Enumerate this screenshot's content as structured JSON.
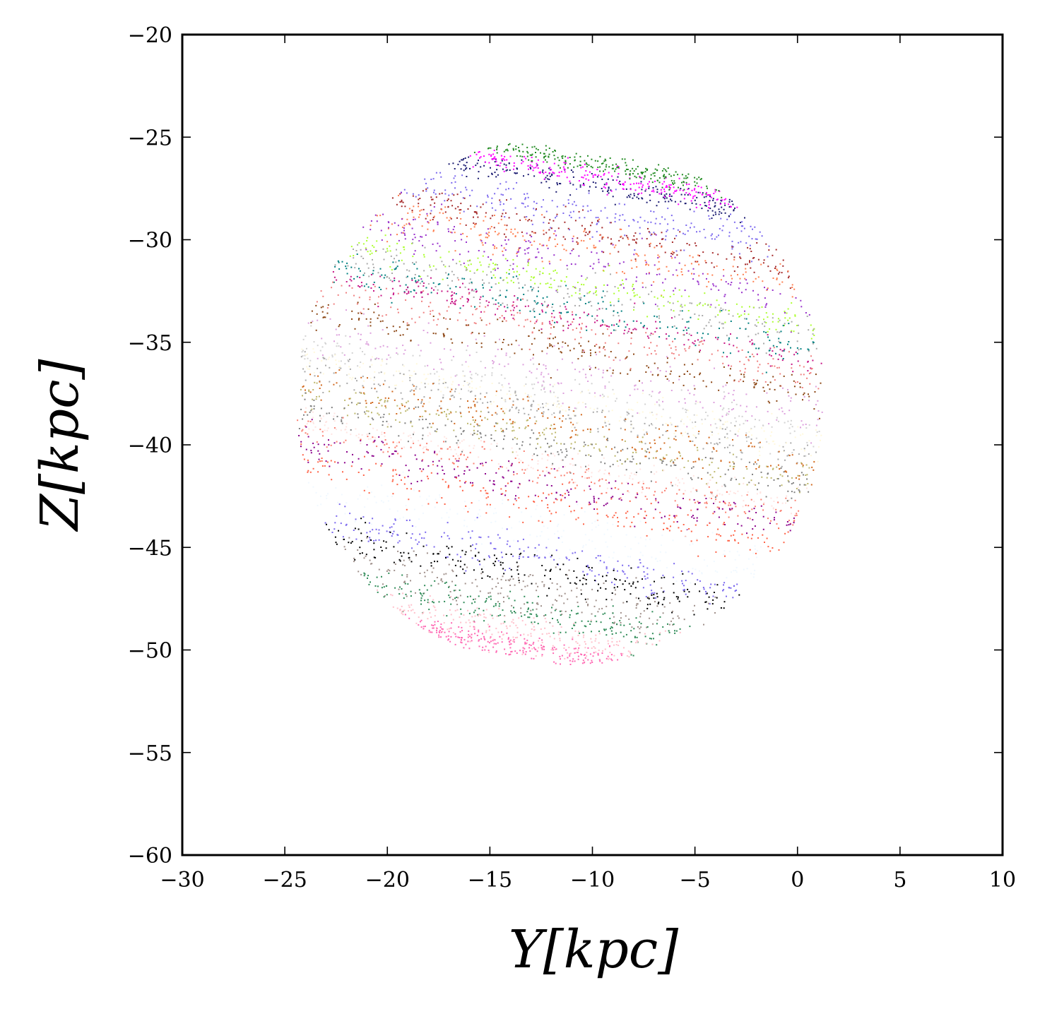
{
  "chart_data": {
    "type": "scatter",
    "title": "",
    "xlabel": "Y[kpc]",
    "ylabel": "Z[kpc]",
    "xlim": [
      -30,
      10
    ],
    "ylim": [
      -60,
      -20
    ],
    "xticks": [
      -30,
      -25,
      -20,
      -15,
      -10,
      -5,
      0,
      5,
      10
    ],
    "yticks": [
      -20,
      -25,
      -30,
      -35,
      -40,
      -45,
      -50,
      -55,
      -60
    ],
    "xtick_labels": [
      "−30",
      "−25",
      "−20",
      "−15",
      "−10",
      "−5",
      "0",
      "5",
      "10"
    ],
    "ytick_labels": [
      "−20",
      "−25",
      "−30",
      "−35",
      "−40",
      "−45",
      "−50",
      "−55",
      "−60"
    ],
    "grid": false,
    "legend": "none",
    "cloud": {
      "center": [
        -11.6,
        -37.9
      ],
      "radius": 12.9
    },
    "band_tilt": -0.17,
    "series": [
      {
        "color": "#191970",
        "z_center": -27.0,
        "width": 0.5
      },
      {
        "color": "#ff00ff",
        "z_center": -26.6,
        "width": 0.5
      },
      {
        "color": "#228b22",
        "z_center": -26.0,
        "width": 0.4
      },
      {
        "color": "#7b68ee",
        "z_center": -28.4,
        "width": 0.9
      },
      {
        "color": "#a52a2a",
        "z_center": -29.4,
        "width": 0.8
      },
      {
        "color": "#ff7f50",
        "z_center": -30.2,
        "width": 0.9
      },
      {
        "color": "#9932cc",
        "z_center": -30.8,
        "width": 1.2
      },
      {
        "color": "#adff2f",
        "z_center": -32.0,
        "width": 0.6
      },
      {
        "color": "#a9a9a9",
        "z_center": -32.6,
        "width": 1.0
      },
      {
        "color": "#008080",
        "z_center": -33.2,
        "width": 0.9
      },
      {
        "color": "#c71585",
        "z_center": -33.7,
        "width": 0.6
      },
      {
        "color": "#f08080",
        "z_center": -34.4,
        "width": 0.9
      },
      {
        "color": "#8b4513",
        "z_center": -35.4,
        "width": 0.9
      },
      {
        "color": "#dda0dd",
        "z_center": -36.5,
        "width": 1.2
      },
      {
        "color": "#d3d3d3",
        "z_center": -37.4,
        "width": 0.9
      },
      {
        "color": "#fff8dc",
        "z_center": -37.9,
        "width": 0.8
      },
      {
        "color": "#a9a9a9",
        "z_center": -38.4,
        "width": 0.7
      },
      {
        "color": "#d2691e",
        "z_center": -39.0,
        "width": 0.9
      },
      {
        "color": "#bdb76b",
        "z_center": -39.7,
        "width": 0.7
      },
      {
        "color": "#808080",
        "z_center": -40.2,
        "width": 0.8
      },
      {
        "color": "#ffe4e1",
        "z_center": -40.9,
        "width": 0.6
      },
      {
        "color": "#fa8072",
        "z_center": -41.4,
        "width": 0.7
      },
      {
        "color": "#8b008b",
        "z_center": -42.1,
        "width": 0.8
      },
      {
        "color": "#ff6347",
        "z_center": -43.0,
        "width": 0.9
      },
      {
        "color": "#f0f8ff",
        "z_center": -44.3,
        "width": 1.2
      },
      {
        "color": "#7b68ee",
        "z_center": -45.6,
        "width": 0.8
      },
      {
        "color": "#000000",
        "z_center": -46.4,
        "width": 0.8
      },
      {
        "color": "#a0908a",
        "z_center": -47.4,
        "width": 1.0
      },
      {
        "color": "#2e8b57",
        "z_center": -48.4,
        "width": 0.8
      },
      {
        "color": "#ffc0cb",
        "z_center": -49.4,
        "width": 0.9
      },
      {
        "color": "#ff69b4",
        "z_center": -50.1,
        "width": 0.5
      }
    ]
  }
}
